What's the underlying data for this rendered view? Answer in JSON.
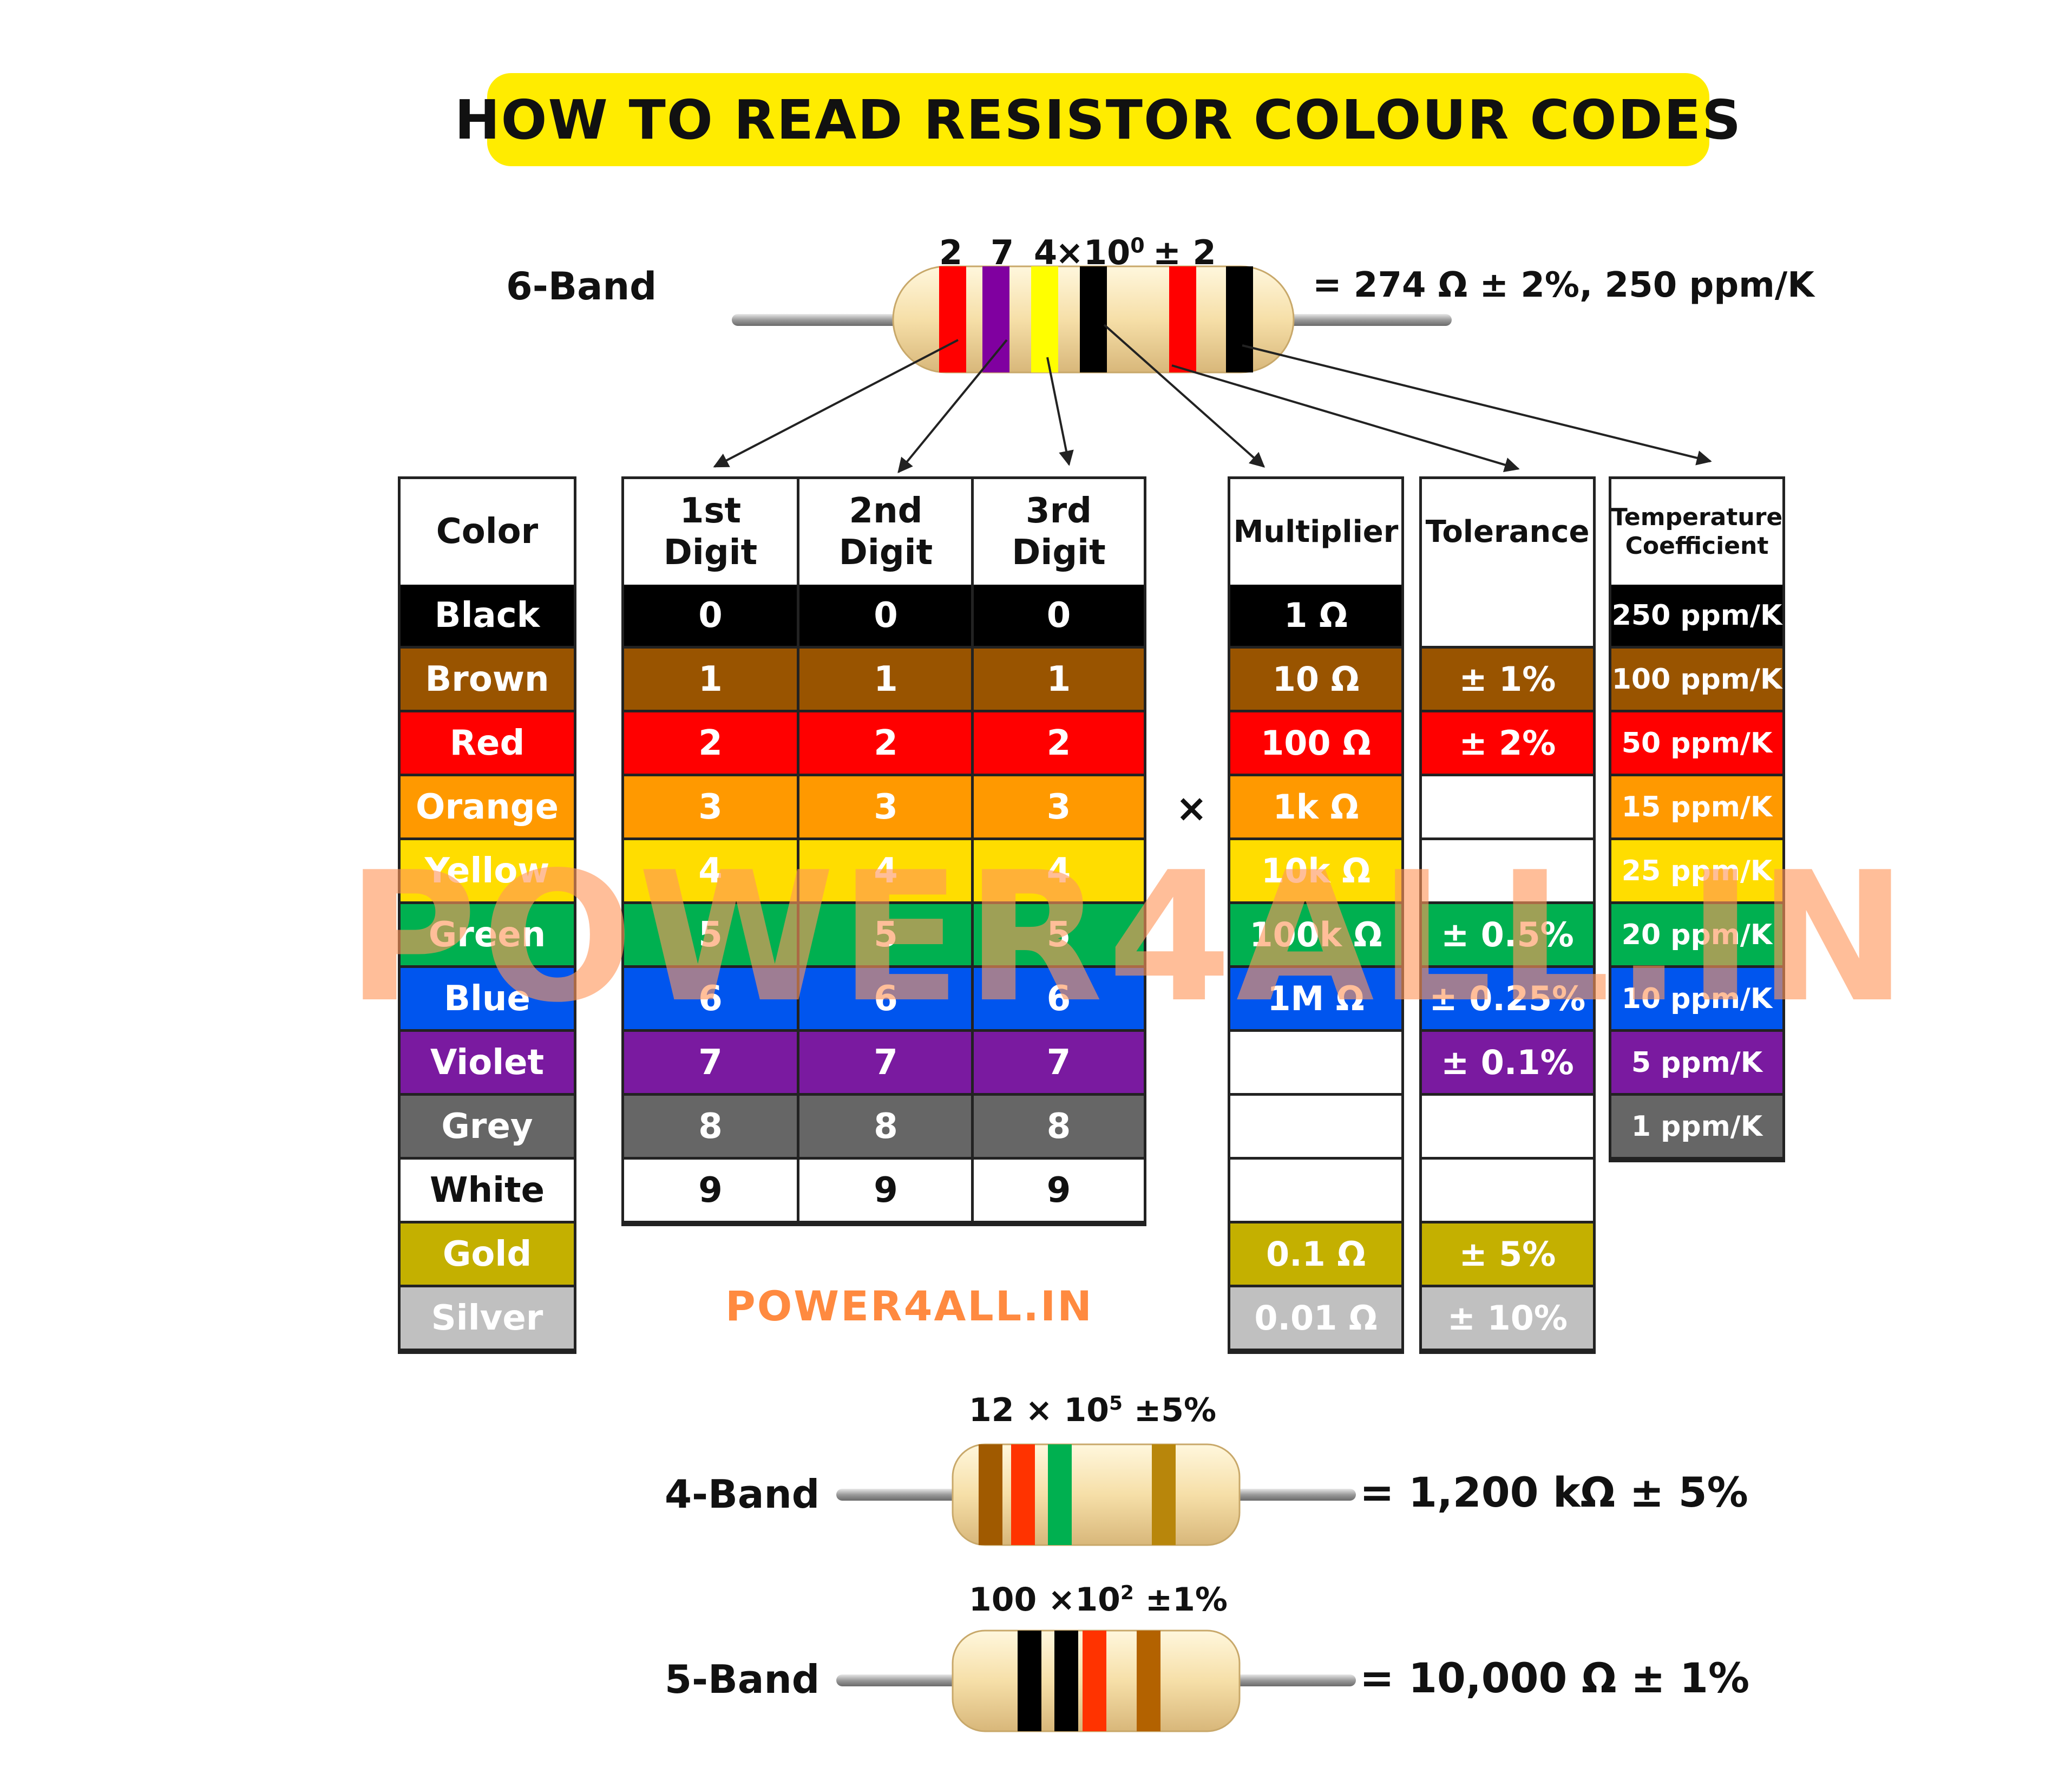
{
  "title": "HOW TO READ RESISTOR COLOUR CODES",
  "watermark": "POWER4ALL.IN",
  "watermark_small": "POWER4ALL.IN",
  "six_band": {
    "label": "6-Band",
    "band_labels": [
      "2",
      "7",
      "4",
      "×10",
      "0",
      "± 2"
    ],
    "result": "= 274 Ω ± 2%, 250 ppm/K",
    "bands": [
      "#ff0000",
      "#8000a0",
      "#ffff00",
      "#000000",
      "#ff0000",
      "#000000"
    ]
  },
  "table": {
    "headers": {
      "color": "Color",
      "digit1": [
        "1st",
        "Digit"
      ],
      "digit2": [
        "2nd",
        "Digit"
      ],
      "digit3": [
        "3rd",
        "Digit"
      ],
      "multiplier": "Multiplier",
      "tolerance": "Tolerance",
      "tempco": [
        "Temperature",
        "Coefficient"
      ]
    },
    "multiply_sign": "×",
    "rows": [
      {
        "name": "Black",
        "bg": "#000000",
        "fg": "#ffffff",
        "digit": "0",
        "multiplier": "1 Ω",
        "tolerance": "",
        "tempco": "250 ppm/K"
      },
      {
        "name": "Brown",
        "bg": "#995400",
        "fg": "#ffffff",
        "digit": "1",
        "multiplier": "10 Ω",
        "tolerance": "± 1%",
        "tempco": "100 ppm/K"
      },
      {
        "name": "Red",
        "bg": "#ff0000",
        "fg": "#ffffff",
        "digit": "2",
        "multiplier": "100 Ω",
        "tolerance": "± 2%",
        "tempco": "50 ppm/K"
      },
      {
        "name": "Orange",
        "bg": "#ff9900",
        "fg": "#ffffff",
        "digit": "3",
        "multiplier": "1k Ω",
        "tolerance": "",
        "tempco": "15 ppm/K"
      },
      {
        "name": "Yellow",
        "bg": "#ffdd00",
        "fg": "#ffffff",
        "digit": "4",
        "multiplier": "10k Ω",
        "tolerance": "",
        "tempco": "25 ppm/K"
      },
      {
        "name": "Green",
        "bg": "#00b050",
        "fg": "#ffffff",
        "digit": "5",
        "multiplier": "100k Ω",
        "tolerance": "± 0.5%",
        "tempco": "20 ppm/K"
      },
      {
        "name": "Blue",
        "bg": "#0055ee",
        "fg": "#ffffff",
        "digit": "6",
        "multiplier": "1M Ω",
        "tolerance": "± 0.25%",
        "tempco": "10 ppm/K"
      },
      {
        "name": "Violet",
        "bg": "#7a1aa0",
        "fg": "#ffffff",
        "digit": "7",
        "multiplier": "",
        "tolerance": "± 0.1%",
        "tempco": "5 ppm/K"
      },
      {
        "name": "Grey",
        "bg": "#666666",
        "fg": "#ffffff",
        "digit": "8",
        "multiplier": "",
        "tolerance": "",
        "tempco": "1 ppm/K"
      },
      {
        "name": "White",
        "bg": "#ffffff",
        "fg": "#111111",
        "digit": "9",
        "multiplier": "",
        "tolerance": "",
        "tempco": ""
      },
      {
        "name": "Gold",
        "bg": "#c4b000",
        "fg": "#ffffff",
        "digit": "",
        "multiplier": "0.1 Ω",
        "tolerance": "± 5%",
        "tempco": ""
      },
      {
        "name": "Silver",
        "bg": "#c0c0c0",
        "fg": "#ffffff",
        "digit": "",
        "multiplier": "0.01 Ω",
        "tolerance": "± 10%",
        "tempco": ""
      }
    ]
  },
  "four_band": {
    "label": "4-Band",
    "formula_main": "12 × 10",
    "formula_exp": "5",
    "formula_tol": " ±5%",
    "result": "= 1,200 kΩ ± 5%",
    "bands": [
      "#a05a00",
      "#ff3300",
      "#00b050",
      "#b8860b"
    ]
  },
  "five_band": {
    "label": "5-Band",
    "formula_main": "100 ×10",
    "formula_exp": "2",
    "formula_tol": " ±1%",
    "result": "= 10,000 Ω ± 1%",
    "bands": [
      "#000000",
      "#000000",
      "#ff3300",
      "#b36200"
    ]
  }
}
